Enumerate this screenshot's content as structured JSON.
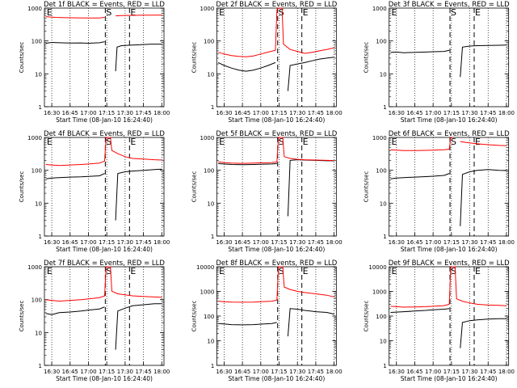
{
  "layout": {
    "rows": 3,
    "cols": 3
  },
  "chart_data": [
    {
      "type": "line",
      "title": "Det 1f BLACK = Events, RED = LLD",
      "ylabel": "Counts/sec",
      "xlabel": "Start Time (08-Jan-10 16:24:40)",
      "ylog": true,
      "ylim": [
        1,
        1000
      ],
      "xticks": [
        "16:30",
        "16:45",
        "17:00",
        "17:15",
        "17:30",
        "17:45",
        "18:00"
      ],
      "markers": [
        {
          "label": "E",
          "t": 16.42
        },
        {
          "label": "S",
          "t": 17.23
        },
        {
          "label": "E",
          "t": 17.56
        }
      ],
      "series": [
        {
          "name": "Events",
          "color": "#000000",
          "x": [
            16.42,
            16.5,
            16.6,
            16.75,
            16.9,
            17.0,
            17.15,
            17.22,
            17.23,
            17.36,
            17.37,
            17.39,
            17.45,
            17.6,
            17.75,
            17.85,
            18.0
          ],
          "y": [
            85,
            90,
            88,
            86,
            87,
            85,
            88,
            95,
            null,
            null,
            12,
            65,
            72,
            75,
            78,
            80,
            80
          ]
        },
        {
          "name": "LLD",
          "color": "#ff0000",
          "x": [
            16.42,
            16.55,
            16.7,
            16.85,
            17.0,
            17.15,
            17.22,
            17.23,
            17.36,
            17.37,
            17.45,
            17.6,
            17.75,
            17.9,
            18.0
          ],
          "y": [
            550,
            520,
            510,
            505,
            500,
            500,
            520,
            null,
            null,
            580,
            590,
            600,
            610,
            610,
            615
          ]
        }
      ]
    },
    {
      "type": "line",
      "title": "Det 2f BLACK = Events, RED = LLD",
      "ylabel": "Counts/sec",
      "xlabel": "Start Time (08-Jan-10 16:24:40)",
      "ylog": true,
      "ylim": [
        1,
        1000
      ],
      "xticks": [
        "16:30",
        "16:45",
        "17:00",
        "17:15",
        "17:30",
        "17:45",
        "18:00"
      ],
      "markers": [
        {
          "label": "E",
          "t": 16.42
        },
        {
          "label": "S",
          "t": 17.23
        },
        {
          "label": "E",
          "t": 17.56
        }
      ],
      "series": [
        {
          "name": "Events",
          "color": "#000000",
          "x": [
            16.42,
            16.5,
            16.6,
            16.7,
            16.8,
            16.9,
            17.0,
            17.1,
            17.2,
            17.23,
            17.36,
            17.37,
            17.4,
            17.5,
            17.6,
            17.7,
            17.8,
            17.9,
            18.0
          ],
          "y": [
            22,
            18,
            15,
            13,
            12,
            13,
            15,
            18,
            22,
            null,
            null,
            3,
            18,
            20,
            22,
            25,
            28,
            30,
            32
          ]
        },
        {
          "name": "LLD",
          "color": "#ff0000",
          "x": [
            16.42,
            16.5,
            16.6,
            16.7,
            16.8,
            16.9,
            17.0,
            17.1,
            17.2,
            17.22,
            17.24,
            17.29,
            17.31,
            17.4,
            17.5,
            17.6,
            17.7,
            17.8,
            17.9,
            18.0
          ],
          "y": [
            45,
            40,
            36,
            34,
            33,
            35,
            40,
            46,
            52,
            900,
            1000,
            1000,
            80,
            55,
            48,
            42,
            45,
            50,
            55,
            62
          ]
        }
      ]
    },
    {
      "type": "line",
      "title": "Det 3f BLACK = Events, RED = LLD",
      "ylabel": "Counts/sec",
      "xlabel": "Start Time (08-Jan-10 16:24:40)",
      "ylog": true,
      "ylim": [
        1,
        1000
      ],
      "xticks": [
        "16:30",
        "16:45",
        "17:00",
        "17:15",
        "17:30",
        "17:45",
        "18:00"
      ],
      "markers": [
        {
          "label": "E",
          "t": 16.42
        },
        {
          "label": "S",
          "t": 17.23
        },
        {
          "label": "E",
          "t": 17.56
        }
      ],
      "series": [
        {
          "name": "Events",
          "color": "#000000",
          "x": [
            16.42,
            16.5,
            16.6,
            16.75,
            16.9,
            17.0,
            17.15,
            17.22,
            17.23,
            17.36,
            17.37,
            17.4,
            17.5,
            17.6,
            17.75,
            17.9,
            18.0
          ],
          "y": [
            45,
            46,
            44,
            45,
            46,
            47,
            48,
            52,
            null,
            null,
            8,
            65,
            70,
            72,
            73,
            74,
            75
          ]
        }
      ]
    },
    {
      "type": "line",
      "title": "Det 4f BLACK = Events, RED = LLD",
      "ylabel": "Counts/sec",
      "xlabel": "Start Time (08-Jan-10 16:24:40)",
      "ylog": true,
      "ylim": [
        1,
        1000
      ],
      "xticks": [
        "16:30",
        "16:45",
        "17:00",
        "17:15",
        "17:30",
        "17:45",
        "18:00"
      ],
      "markers": [
        {
          "label": "E",
          "t": 16.42
        },
        {
          "label": "S",
          "t": 17.23
        },
        {
          "label": "E",
          "t": 17.56
        }
      ],
      "series": [
        {
          "name": "Events",
          "color": "#000000",
          "x": [
            16.42,
            16.5,
            16.6,
            16.75,
            16.9,
            17.0,
            17.15,
            17.22,
            17.23,
            17.36,
            17.37,
            17.4,
            17.5,
            17.6,
            17.75,
            17.9,
            18.0
          ],
          "y": [
            55,
            58,
            60,
            62,
            63,
            65,
            68,
            80,
            null,
            null,
            3,
            80,
            90,
            95,
            100,
            105,
            108
          ]
        },
        {
          "name": "LLD",
          "color": "#ff0000",
          "x": [
            16.42,
            16.5,
            16.6,
            16.75,
            16.9,
            17.0,
            17.15,
            17.22,
            17.24,
            17.3,
            17.32,
            17.4,
            17.5,
            17.6,
            17.75,
            17.9,
            18.0
          ],
          "y": [
            150,
            145,
            140,
            145,
            150,
            155,
            165,
            190,
            1000,
            1000,
            400,
            320,
            260,
            230,
            220,
            210,
            205
          ]
        }
      ]
    },
    {
      "type": "line",
      "title": "Det 5f BLACK = Events, RED = LLD",
      "ylabel": "Counts/sec",
      "xlabel": "Start Time (08-Jan-10 16:24:40)",
      "ylog": true,
      "ylim": [
        1,
        1000
      ],
      "xticks": [
        "16:30",
        "16:45",
        "17:00",
        "17:15",
        "17:30",
        "17:45",
        "18:00"
      ],
      "markers": [
        {
          "label": "E",
          "t": 16.42
        },
        {
          "label": "S",
          "t": 17.23
        },
        {
          "label": "E",
          "t": 17.56
        }
      ],
      "series": [
        {
          "name": "Events",
          "color": "#000000",
          "x": [
            16.42,
            16.5,
            16.6,
            16.75,
            16.9,
            17.0,
            17.15,
            17.22,
            17.23,
            17.36,
            17.37,
            17.4,
            17.5,
            17.6,
            17.75,
            17.9,
            18.0
          ],
          "y": [
            160,
            155,
            150,
            148,
            150,
            152,
            155,
            160,
            null,
            null,
            4,
            200,
            210,
            205,
            200,
            195,
            195
          ]
        },
        {
          "name": "LLD",
          "color": "#ff0000",
          "x": [
            16.42,
            16.5,
            16.6,
            16.75,
            16.9,
            17.0,
            17.15,
            17.22,
            17.24,
            17.3,
            17.32,
            17.4,
            17.5,
            17.6,
            17.75,
            17.9,
            18.0
          ],
          "y": [
            180,
            172,
            165,
            162,
            165,
            168,
            172,
            180,
            1000,
            1000,
            260,
            230,
            215,
            210,
            205,
            200,
            198
          ]
        }
      ]
    },
    {
      "type": "line",
      "title": "Det 6f BLACK = Events, RED = LLD",
      "ylabel": "Counts/sec",
      "xlabel": "Start Time (08-Jan-10 16:24:40)",
      "ylog": true,
      "ylim": [
        1,
        1000
      ],
      "xticks": [
        "16:30",
        "16:45",
        "17:00",
        "17:15",
        "17:30",
        "17:45",
        "18:00"
      ],
      "markers": [
        {
          "label": "E",
          "t": 16.42
        },
        {
          "label": "S",
          "t": 17.23
        },
        {
          "label": "E",
          "t": 17.56
        }
      ],
      "series": [
        {
          "name": "Events",
          "color": "#000000",
          "x": [
            16.42,
            16.5,
            16.6,
            16.75,
            16.9,
            17.0,
            17.15,
            17.22,
            17.23,
            17.36,
            17.37,
            17.4,
            17.5,
            17.6,
            17.75,
            17.9,
            18.0
          ],
          "y": [
            55,
            58,
            60,
            62,
            64,
            66,
            70,
            80,
            null,
            null,
            2,
            75,
            90,
            100,
            105,
            100,
            98
          ]
        },
        {
          "name": "LLD",
          "color": "#ff0000",
          "x": [
            16.42,
            16.5,
            16.6,
            16.75,
            16.9,
            17.0,
            17.15,
            17.22,
            17.24,
            17.27,
            17.36,
            17.37,
            17.45,
            17.6,
            17.75,
            17.9,
            18.0
          ],
          "y": [
            420,
            410,
            400,
            400,
            405,
            410,
            420,
            440,
            1000,
            1000,
            null,
            750,
            700,
            640,
            600,
            570,
            560
          ]
        }
      ]
    },
    {
      "type": "line",
      "title": "Det 7f BLACK = Events, RED = LLD",
      "ylabel": "Counts/sec",
      "xlabel": "Start Time (08-Jan-10 16:24:40)",
      "ylog": true,
      "ylim": [
        1,
        1000
      ],
      "xticks": [
        "16:30",
        "16:45",
        "17:00",
        "17:15",
        "17:30",
        "17:45",
        "18:00"
      ],
      "markers": [
        {
          "label": "E",
          "t": 16.42
        },
        {
          "label": "S",
          "t": 17.23
        },
        {
          "label": "E",
          "t": 17.56
        }
      ],
      "series": [
        {
          "name": "Events",
          "color": "#000000",
          "x": [
            16.42,
            16.5,
            16.6,
            16.75,
            16.9,
            17.0,
            17.15,
            17.22,
            17.23,
            17.36,
            17.37,
            17.4,
            17.5,
            17.6,
            17.75,
            17.9,
            18.0
          ],
          "y": [
            38,
            35,
            40,
            42,
            45,
            48,
            52,
            60,
            null,
            null,
            3,
            45,
            55,
            65,
            70,
            75,
            75
          ]
        },
        {
          "name": "LLD",
          "color": "#ff0000",
          "x": [
            16.42,
            16.5,
            16.6,
            16.75,
            16.9,
            17.0,
            17.15,
            17.22,
            17.24,
            17.3,
            17.32,
            17.4,
            17.5,
            17.6,
            17.75,
            17.9,
            18.0
          ],
          "y": [
            100,
            95,
            90,
            95,
            100,
            105,
            115,
            130,
            1000,
            1000,
            180,
            150,
            140,
            130,
            125,
            120,
            118
          ]
        }
      ]
    },
    {
      "type": "line",
      "title": "Det 8f BLACK = Events, RED = LLD",
      "ylabel": "Counts/sec",
      "xlabel": "Start Time (08-Jan-10 16:24:40)",
      "ylog": true,
      "ylim": [
        1,
        10000
      ],
      "xticks": [
        "16:30",
        "16:45",
        "17:00",
        "17:15",
        "17:30",
        "17:45",
        "18:00"
      ],
      "markers": [
        {
          "label": "E",
          "t": 16.42
        },
        {
          "label": "S",
          "t": 17.23
        },
        {
          "label": "E",
          "t": 17.56
        }
      ],
      "series": [
        {
          "name": "Events",
          "color": "#000000",
          "x": [
            16.42,
            16.5,
            16.6,
            16.75,
            16.9,
            17.0,
            17.15,
            17.22,
            17.23,
            17.36,
            17.37,
            17.4,
            17.5,
            17.6,
            17.75,
            17.9,
            18.0
          ],
          "y": [
            50,
            48,
            45,
            44,
            45,
            47,
            50,
            55,
            null,
            null,
            15,
            200,
            190,
            170,
            150,
            140,
            120
          ]
        },
        {
          "name": "LLD",
          "color": "#ff0000",
          "x": [
            16.42,
            16.5,
            16.6,
            16.75,
            16.9,
            17.0,
            17.15,
            17.22,
            17.24,
            17.3,
            17.32,
            17.4,
            17.5,
            17.6,
            17.75,
            17.9,
            18.0
          ],
          "y": [
            400,
            380,
            370,
            365,
            370,
            380,
            400,
            450,
            10000,
            10000,
            1500,
            1200,
            1000,
            900,
            800,
            700,
            600
          ]
        }
      ]
    },
    {
      "type": "line",
      "title": "Det 9f BLACK = Events, RED = LLD",
      "ylabel": "Counts/sec",
      "xlabel": "Start Time (08-Jan-10 16:24:40)",
      "ylog": true,
      "ylim": [
        1,
        10000
      ],
      "xticks": [
        "16:30",
        "16:45",
        "17:00",
        "17:15",
        "17:30",
        "17:45",
        "18:00"
      ],
      "markers": [
        {
          "label": "E",
          "t": 16.42
        },
        {
          "label": "S",
          "t": 17.23
        },
        {
          "label": "E",
          "t": 17.56
        }
      ],
      "series": [
        {
          "name": "Events",
          "color": "#000000",
          "x": [
            16.42,
            16.5,
            16.6,
            16.75,
            16.9,
            17.0,
            17.15,
            17.22,
            17.23,
            17.36,
            17.37,
            17.4,
            17.5,
            17.6,
            17.75,
            17.9,
            18.0
          ],
          "y": [
            140,
            145,
            150,
            160,
            170,
            180,
            190,
            200,
            null,
            null,
            5,
            55,
            65,
            70,
            75,
            78,
            78
          ]
        },
        {
          "name": "LLD",
          "color": "#ff0000",
          "x": [
            16.42,
            16.5,
            16.6,
            16.75,
            16.9,
            17.0,
            17.15,
            17.22,
            17.24,
            17.3,
            17.32,
            17.4,
            17.5,
            17.6,
            17.75,
            17.9,
            18.0
          ],
          "y": [
            250,
            240,
            230,
            235,
            240,
            250,
            265,
            300,
            10000,
            10000,
            500,
            400,
            340,
            300,
            280,
            270,
            260
          ]
        }
      ]
    }
  ]
}
